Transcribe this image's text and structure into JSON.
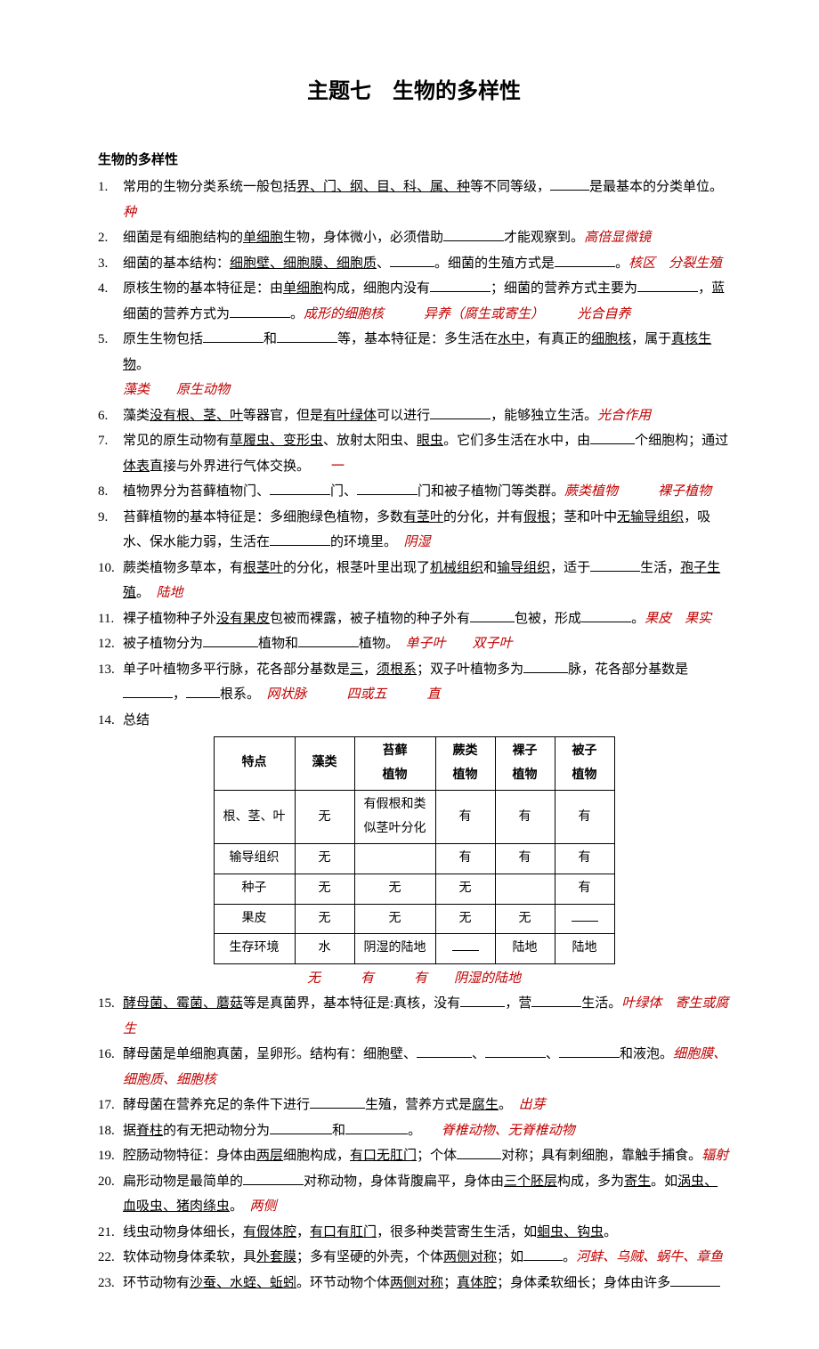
{
  "title": "主题七　生物的多样性",
  "section": "生物的多样性",
  "items": [
    {
      "n": "1.",
      "text": "常用的生物分类系统一般包括<u>界、门、纲、目、科、属、种</u>等不同等级，____是最基本的分类单位。",
      "ans": "种"
    },
    {
      "n": "2.",
      "text": "细菌是有细胞结构的<u>单细胞</u>生物，身体微小，必须借助________才能观察到。",
      "ans_inline": "高倍显微镜"
    },
    {
      "n": "3.",
      "text": "细菌的基本结构：<u>细胞壁、细胞膜、细胞质</u>、_____。细菌的生殖方式是________。",
      "ans_inline": "核区　分裂生殖"
    },
    {
      "n": "4.",
      "text": "原核生物的基本特征是：由<u>单细胞</u>构成，细胞内没有________；细菌的营养方式主要为________，蓝细菌的营养方式为________。",
      "ans_inline": "成形的细胞核　　　异养（腐生或寄生）　　　光合自养"
    },
    {
      "n": "5.",
      "text": "原生生物包括________和________等，基本特征是：多生活在<u>水中</u>，有真正的<u>细胞核</u>，属于<u>真核生物</u>。",
      "ans": "藻类　　原生动物"
    },
    {
      "n": "6.",
      "text": "藻类<u>没有根、茎、叶</u>等器官，但是<u>有叶绿体</u>可以进行________，能够独立生活。",
      "ans_inline": "光合作用"
    },
    {
      "n": "7.",
      "text": "常见的原生动物有<u>草履虫、变形虫</u>、放射太阳虫、<u>眼虫</u>。它们多生活在水中，由_____个细胞构；通过<u>体表</u>直接与外界进行气体交换。　　",
      "ans_inline": "一"
    },
    {
      "n": "8.",
      "text": "植物界分为苔藓植物门、________门、________门和被子植物门等类群。",
      "ans_inline": "蕨类植物　　　裸子植物"
    },
    {
      "n": "9.",
      "text": "苔藓植物的基本特征是：多细胞绿色植物，多数<u>有茎叶</u>的分化，并有<u>假根</u>；茎和叶中<u>无输导组织</u>，吸水、保水能力弱，生活在________的环境里。　",
      "ans_inline": "阴湿"
    },
    {
      "n": "10.",
      "text": "蕨类植物多草本，有<u>根茎叶</u>的分化，根茎叶里出现了<u>机械组织</u>和<u>输导组织</u>，适于______生活，<u>孢子生殖</u>。　",
      "ans_inline": "陆地"
    },
    {
      "n": "11.",
      "text": "裸子植物种子外<u>没有果皮</u>包被而裸露，被子植物的种子外有_____包被，形成______。",
      "ans_inline": "果皮　果实"
    },
    {
      "n": "12.",
      "text": "被子植物分为_______植物和________植物。　",
      "ans_inline": "单子叶　　双子叶"
    },
    {
      "n": "13.",
      "text": "单子叶植物多平行脉，花各部分基数是<u>三</u>，<u>须根系</u>；双子叶植物多为_____脉，花各部分基数是______，___根系。　",
      "ans_inline": "网状脉　　　四或五　　　直"
    },
    {
      "n": "14.",
      "text": "总结"
    }
  ],
  "table": {
    "headers": [
      "特点",
      "藻类",
      "苔藓\n植物",
      "蕨类\n植物",
      "裸子\n植物",
      "被子\n植物"
    ],
    "rows": [
      [
        "根、茎、叶",
        "无",
        "有假根和类\n似茎叶分化",
        "有",
        "有",
        "有"
      ],
      [
        "输导组织",
        "无",
        "",
        "有",
        "有",
        "有"
      ],
      [
        "种子",
        "无",
        "无",
        "无",
        "",
        "有"
      ],
      [
        "果皮",
        "无",
        "无",
        "无",
        "无",
        "____"
      ],
      [
        "生存环境",
        "水",
        "阴湿的陆地",
        "____",
        "陆地",
        "陆地"
      ]
    ],
    "answers": "无　　　有　　　有　　阴湿的陆地"
  },
  "items2": [
    {
      "n": "15.",
      "text": "<u>酵母菌、霉菌、蘑菇</u>等是真菌界，基本特征是:真核，没有_____，营______生活。",
      "ans_inline": "叶绿体　寄生或腐生"
    },
    {
      "n": "16.",
      "text": "酵母菌是单细胞真菌，呈卵形。结构有：细胞壁、_______、________、________和液泡。",
      "ans_inline": "细胞膜、细胞质、细胞核"
    },
    {
      "n": "17.",
      "text": "酵母菌在营养充足的条件下进行_______生殖，营养方式是<u>腐生</u>。　",
      "ans_inline": "出芽"
    },
    {
      "n": "18.",
      "text": "据<u>脊柱</u>的有无把动物分为_________和__________。　　",
      "ans_inline": "脊椎动物、无脊椎动物"
    },
    {
      "n": "19.",
      "text": "腔肠动物特征：身体由<u>两层</u>细胞构成，<u>有口无肛门</u>；个体_____对称；具有刺细胞，靠触手捕食。",
      "ans_inline": "辐射"
    },
    {
      "n": "20.",
      "text": "扁形动物是最简单的________对称动物，身体背腹扁平，身体由<u>三个胚层</u>构成，多为<u>寄生</u>。如<u>涡虫、血吸虫、猪肉绦虫</u>。　",
      "ans_inline": "两侧"
    },
    {
      "n": "21.",
      "text": "线虫动物身体细长，<u>有假体腔</u>，<u>有口有肛门</u>，很多种类营寄生生活，如<u>蛔虫、钩虫</u>。"
    },
    {
      "n": "22.",
      "text": "软体动物身体柔软，具<u>外套膜</u>；多有坚硬的外壳，个体<u>两侧对称</u>；如____。",
      "ans_inline": "河蚌、乌贼、蜗牛、章鱼"
    },
    {
      "n": "23.",
      "text": "环节动物有<u>沙蚕、水蛭、蚯蚓</u>。环节动物个体<u>两侧对称</u>；<u>真体腔</u>；身体柔软细长；身体由许多______"
    }
  ]
}
